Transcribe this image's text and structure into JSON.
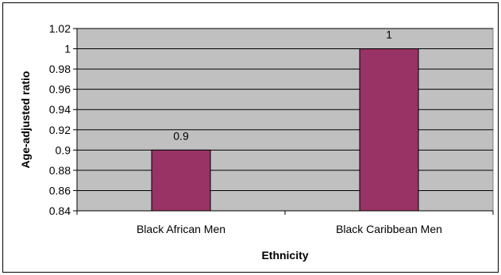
{
  "chart_data": {
    "type": "bar",
    "categories": [
      "Black African Men",
      "Black Caribbean Men"
    ],
    "values": [
      0.9,
      1
    ],
    "data_labels": [
      "0.9",
      "1"
    ],
    "title": "",
    "xlabel": "Ethnicity",
    "ylabel": "Age-adjusted ratio",
    "ylim": [
      0.84,
      1.02
    ],
    "yticks": [
      "0.84",
      "0.86",
      "0.88",
      "0.9",
      "0.92",
      "0.94",
      "0.96",
      "0.98",
      "1",
      "1.02"
    ],
    "grid": true,
    "legend": "none",
    "colors": {
      "bar": "#993366",
      "plot_background": "#c0c0c0",
      "gridline": "#000000"
    }
  }
}
